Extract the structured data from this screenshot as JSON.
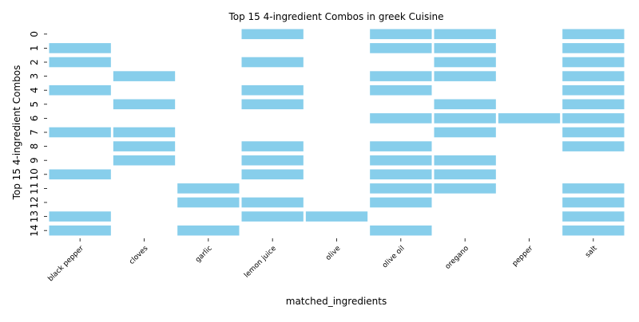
{
  "chart_data": {
    "type": "heatmap",
    "title": "Top 15 4-ingredient Combos in greek Cuisine",
    "xlabel": "matched_ingredients",
    "ylabel": "Top 15 4-ingredient Combos",
    "x_categories": [
      "black pepper",
      "cloves",
      "garlic",
      "lemon juice",
      "olive",
      "olive oil",
      "oregano",
      "pepper",
      "salt"
    ],
    "y_categories": [
      "0",
      "1",
      "2",
      "3",
      "4",
      "5",
      "6",
      "7",
      "8",
      "9",
      "10",
      "11",
      "12",
      "13",
      "14"
    ],
    "cell_color": "#87CEEB",
    "grid": false,
    "present_cells": [
      [
        "lemon juice",
        "olive oil",
        "oregano",
        "salt"
      ],
      [
        "black pepper",
        "olive oil",
        "oregano",
        "salt"
      ],
      [
        "black pepper",
        "lemon juice",
        "oregano",
        "salt"
      ],
      [
        "cloves",
        "olive oil",
        "oregano",
        "salt"
      ],
      [
        "black pepper",
        "lemon juice",
        "olive oil",
        "salt"
      ],
      [
        "cloves",
        "lemon juice",
        "oregano",
        "salt"
      ],
      [
        "olive oil",
        "oregano",
        "pepper",
        "salt"
      ],
      [
        "black pepper",
        "cloves",
        "oregano",
        "salt"
      ],
      [
        "cloves",
        "lemon juice",
        "olive oil",
        "salt"
      ],
      [
        "cloves",
        "lemon juice",
        "olive oil",
        "oregano"
      ],
      [
        "black pepper",
        "lemon juice",
        "olive oil",
        "oregano"
      ],
      [
        "garlic",
        "olive oil",
        "oregano",
        "salt"
      ],
      [
        "garlic",
        "lemon juice",
        "olive oil",
        "salt"
      ],
      [
        "black pepper",
        "lemon juice",
        "olive",
        "salt"
      ],
      [
        "black pepper",
        "garlic",
        "olive oil",
        "salt"
      ]
    ]
  }
}
